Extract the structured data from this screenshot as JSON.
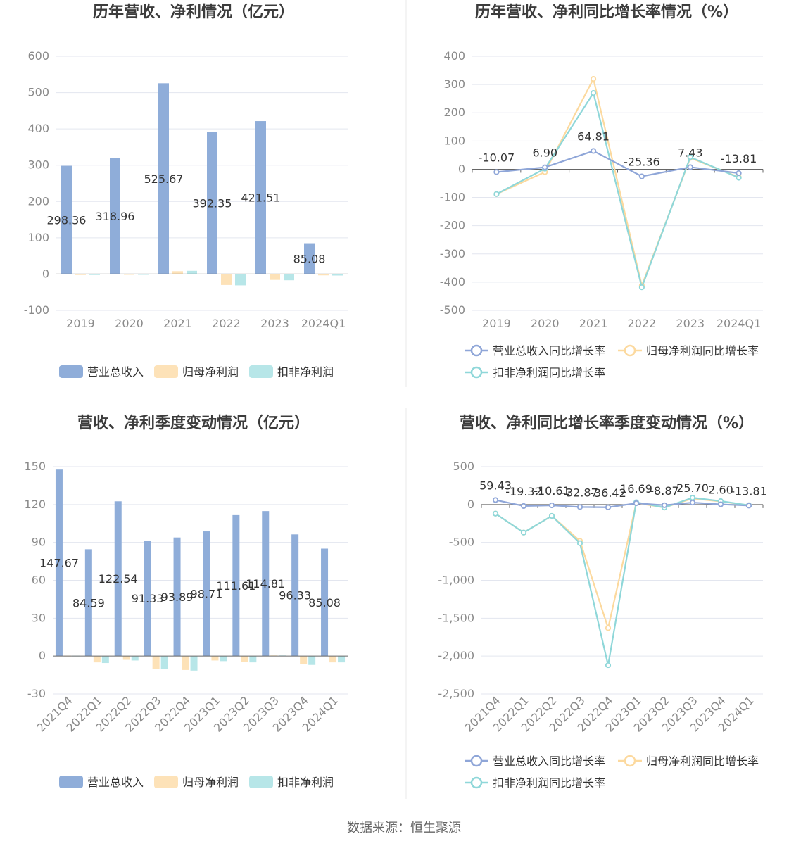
{
  "colors": {
    "revenue": "#8fadd9",
    "net_profit": "#fde2b8",
    "deducted_profit": "#b7e6e8",
    "revenue_line": "#8fa6d8",
    "net_profit_line": "#fcd99e",
    "deducted_profit_line": "#8fd7d9",
    "grid": "#e3e6ef",
    "axis": "#666666",
    "divider": "#e8e8e8"
  },
  "source": "数据来源：恒生聚源",
  "chart_data": [
    {
      "id": "annual-values",
      "type": "bar",
      "title": "历年营收、净利情况（亿元）",
      "categories": [
        "2019",
        "2020",
        "2021",
        "2022",
        "2023",
        "2024Q1"
      ],
      "ylim": [
        -100,
        600
      ],
      "yticks": [
        -100,
        0,
        100,
        200,
        300,
        400,
        500,
        600
      ],
      "grid": true,
      "legend_position": "bottom",
      "series": [
        {
          "name": "营业总收入",
          "color": "#8fadd9",
          "legend_icon": "bar",
          "values": [
            298.36,
            318.96,
            525.67,
            392.35,
            421.51,
            85.08
          ],
          "labels": [
            "298.36",
            "318.96",
            "525.67",
            "392.35",
            "421.51",
            "85.08"
          ]
        },
        {
          "name": "归母净利润",
          "color": "#fde2b8",
          "legend_icon": "bar",
          "values": [
            -2.5,
            -2.0,
            8.0,
            -30.0,
            -16.0,
            -3.5
          ]
        },
        {
          "name": "扣非净利润",
          "color": "#b7e6e8",
          "legend_icon": "bar",
          "values": [
            -2.5,
            -2.0,
            9.0,
            -31.0,
            -17.0,
            -4.0
          ]
        }
      ]
    },
    {
      "id": "annual-growth",
      "type": "line",
      "title": "历年营收、净利同比增长率情况（%）",
      "categories": [
        "2019",
        "2020",
        "2021",
        "2022",
        "2023",
        "2024Q1"
      ],
      "ylim": [
        -500,
        400
      ],
      "yticks": [
        -500,
        -400,
        -300,
        -200,
        -100,
        0,
        100,
        200,
        300,
        400
      ],
      "grid": true,
      "legend_position": "bottom",
      "series": [
        {
          "name": "营业总收入同比增长率",
          "color": "#8fa6d8",
          "legend_icon": "line",
          "values": [
            -10.07,
            6.9,
            64.81,
            -25.36,
            7.43,
            -13.81
          ],
          "labels": [
            "-10.07",
            "6.90",
            "64.81",
            "-25.36",
            "7.43",
            "-13.81"
          ]
        },
        {
          "name": "归母净利润同比增长率",
          "color": "#fcd99e",
          "legend_icon": "line",
          "values": [
            -88,
            -10,
            320,
            -412,
            40,
            -28
          ]
        },
        {
          "name": "扣非净利润同比增长率",
          "color": "#8fd7d9",
          "legend_icon": "line",
          "values": [
            -88,
            2,
            270,
            -418,
            43,
            -30
          ]
        }
      ]
    },
    {
      "id": "quarterly-values",
      "type": "bar",
      "title": "营收、净利季度变动情况（亿元）",
      "categories": [
        "2021Q4",
        "2022Q1",
        "2022Q2",
        "2022Q3",
        "2022Q4",
        "2023Q1",
        "2023Q2",
        "2023Q3",
        "2023Q4",
        "2024Q1"
      ],
      "ylim": [
        -30,
        150
      ],
      "yticks": [
        -30,
        0,
        30,
        60,
        90,
        120,
        150
      ],
      "grid": true,
      "legend_position": "bottom",
      "series": [
        {
          "name": "营业总收入",
          "color": "#8fadd9",
          "legend_icon": "bar",
          "values": [
            147.67,
            84.59,
            122.54,
            91.33,
            93.89,
            98.71,
            111.61,
            114.81,
            96.33,
            85.08
          ],
          "labels": [
            "147.67",
            "84.59",
            "122.54",
            "91.33",
            "93.89",
            "98.71",
            "111.61",
            "114.81",
            "96.33",
            "85.08"
          ]
        },
        {
          "name": "归母净利润",
          "color": "#fde2b8",
          "legend_icon": "bar",
          "values": [
            0.3,
            -5.0,
            -3.0,
            -10.0,
            -11.0,
            -3.5,
            -4.5,
            0.5,
            -6.5,
            -5.0
          ]
        },
        {
          "name": "扣非净利润",
          "color": "#b7e6e8",
          "legend_icon": "bar",
          "values": [
            0.3,
            -5.5,
            -3.5,
            -10.5,
            -11.5,
            -4.0,
            -5.0,
            0.5,
            -7.0,
            -5.0
          ]
        }
      ]
    },
    {
      "id": "quarterly-growth",
      "type": "line",
      "title": "营收、净利同比增长率季度变动情况（%）",
      "categories": [
        "2021Q4",
        "2022Q1",
        "2022Q2",
        "2022Q3",
        "2022Q4",
        "2023Q1",
        "2023Q2",
        "2023Q3",
        "2023Q4",
        "2024Q1"
      ],
      "ylim": [
        -2500,
        500
      ],
      "yticks": [
        -2500,
        -2000,
        -1500,
        -1000,
        -500,
        0,
        500
      ],
      "ytick_labels": [
        "-2,500",
        "-2,000",
        "-1,500",
        "-1,000",
        "-500",
        "0",
        "500"
      ],
      "grid": true,
      "legend_position": "bottom",
      "series": [
        {
          "name": "营业总收入同比增长率",
          "color": "#8fa6d8",
          "legend_icon": "line",
          "values": [
            59.43,
            -19.32,
            -10.61,
            -32.87,
            -36.42,
            16.69,
            -8.87,
            25.7,
            2.6,
            -13.81
          ],
          "labels": [
            "59.43",
            "-19.32",
            "-10.61",
            "-32.87",
            "-36.42",
            "16.69",
            "-8.87",
            "25.70",
            "2.60",
            "-13.81"
          ]
        },
        {
          "name": "归母净利润同比增长率",
          "color": "#fcd99e",
          "legend_icon": "line",
          "values": [
            -120,
            -370,
            -150,
            -480,
            -1630,
            20,
            -40,
            80,
            40,
            -10
          ]
        },
        {
          "name": "扣非净利润同比增长率",
          "color": "#8fd7d9",
          "legend_icon": "line",
          "values": [
            -120,
            -370,
            -150,
            -510,
            -2120,
            30,
            -40,
            90,
            45,
            -10
          ]
        }
      ]
    }
  ]
}
